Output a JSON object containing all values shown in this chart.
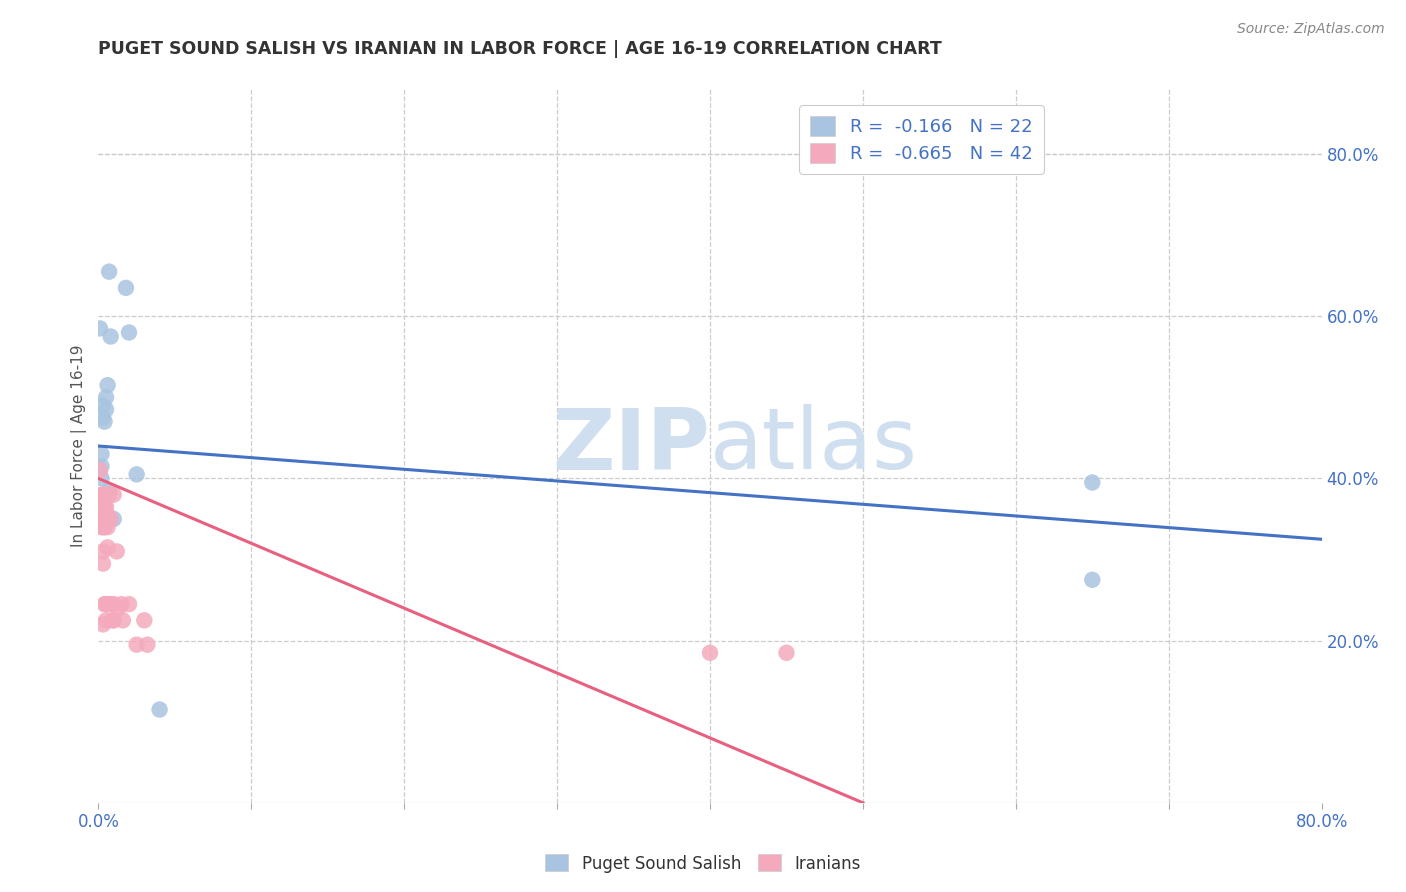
{
  "title": "PUGET SOUND SALISH VS IRANIAN IN LABOR FORCE | AGE 16-19 CORRELATION CHART",
  "source": "Source: ZipAtlas.com",
  "ylabel": "In Labor Force | Age 16-19",
  "r_blue": -0.166,
  "n_blue": 22,
  "r_pink": -0.665,
  "n_pink": 42,
  "xlim": [
    0.0,
    0.8
  ],
  "ylim": [
    0.0,
    0.88
  ],
  "y_ticks": [
    0.2,
    0.4,
    0.6,
    0.8
  ],
  "blue_color": "#A8C4E0",
  "pink_color": "#F4AABC",
  "blue_line_color": "#4472C4",
  "pink_line_color": "#E86080",
  "blue_dots": [
    [
      0.001,
      0.585
    ],
    [
      0.002,
      0.43
    ],
    [
      0.002,
      0.415
    ],
    [
      0.002,
      0.4
    ],
    [
      0.003,
      0.49
    ],
    [
      0.003,
      0.475
    ],
    [
      0.004,
      0.47
    ],
    [
      0.004,
      0.35
    ],
    [
      0.004,
      0.34
    ],
    [
      0.005,
      0.5
    ],
    [
      0.005,
      0.485
    ],
    [
      0.006,
      0.515
    ],
    [
      0.007,
      0.655
    ],
    [
      0.007,
      0.385
    ],
    [
      0.008,
      0.575
    ],
    [
      0.01,
      0.35
    ],
    [
      0.018,
      0.635
    ],
    [
      0.02,
      0.58
    ],
    [
      0.025,
      0.405
    ],
    [
      0.04,
      0.115
    ],
    [
      0.65,
      0.395
    ],
    [
      0.65,
      0.275
    ]
  ],
  "pink_dots": [
    [
      0.001,
      0.41
    ],
    [
      0.002,
      0.38
    ],
    [
      0.002,
      0.365
    ],
    [
      0.002,
      0.355
    ],
    [
      0.002,
      0.34
    ],
    [
      0.003,
      0.38
    ],
    [
      0.003,
      0.365
    ],
    [
      0.003,
      0.35
    ],
    [
      0.003,
      0.34
    ],
    [
      0.003,
      0.31
    ],
    [
      0.003,
      0.295
    ],
    [
      0.003,
      0.22
    ],
    [
      0.004,
      0.38
    ],
    [
      0.004,
      0.365
    ],
    [
      0.004,
      0.355
    ],
    [
      0.004,
      0.34
    ],
    [
      0.004,
      0.245
    ],
    [
      0.005,
      0.365
    ],
    [
      0.005,
      0.35
    ],
    [
      0.005,
      0.245
    ],
    [
      0.005,
      0.225
    ],
    [
      0.006,
      0.355
    ],
    [
      0.006,
      0.34
    ],
    [
      0.006,
      0.315
    ],
    [
      0.006,
      0.245
    ],
    [
      0.007,
      0.38
    ],
    [
      0.008,
      0.35
    ],
    [
      0.008,
      0.245
    ],
    [
      0.009,
      0.225
    ],
    [
      0.01,
      0.38
    ],
    [
      0.01,
      0.245
    ],
    [
      0.01,
      0.225
    ],
    [
      0.012,
      0.31
    ],
    [
      0.013,
      0.24
    ],
    [
      0.015,
      0.245
    ],
    [
      0.016,
      0.225
    ],
    [
      0.02,
      0.245
    ],
    [
      0.025,
      0.195
    ],
    [
      0.03,
      0.225
    ],
    [
      0.032,
      0.195
    ],
    [
      0.4,
      0.185
    ],
    [
      0.45,
      0.185
    ]
  ],
  "blue_line_x": [
    0.0,
    0.8
  ],
  "blue_line_y": [
    0.44,
    0.325
  ],
  "pink_line_x": [
    0.0,
    0.5
  ],
  "pink_line_y": [
    0.4,
    0.0
  ],
  "watermark_zip": "ZIP",
  "watermark_atlas": "atlas",
  "background_color": "#FFFFFF",
  "grid_color": "#CCCCCC",
  "tick_color": "#4472C4",
  "legend_r_color": "#4472C4",
  "legend_n_color": "#4472C4"
}
